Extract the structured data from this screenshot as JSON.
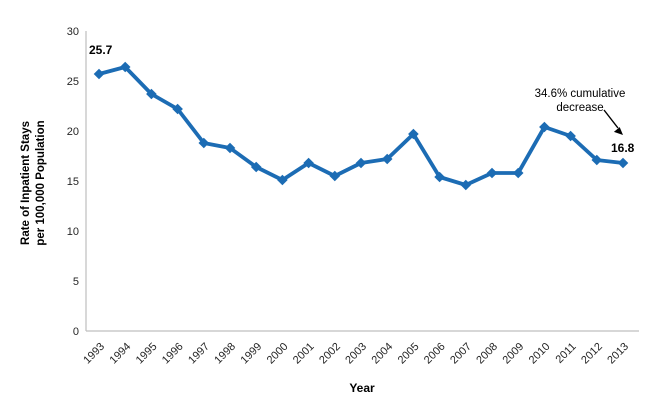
{
  "chart_data": {
    "type": "line",
    "title": "",
    "xlabel": "Year",
    "ylabel_line1": "Rate of Inpatient Stays",
    "ylabel_line2": "per 100,000 Population",
    "ylim": [
      0,
      30
    ],
    "ytick_step": 5,
    "grid": false,
    "legend": "none",
    "categories": [
      "1993",
      "1994",
      "1995",
      "1996",
      "1997",
      "1998",
      "1999",
      "2000",
      "2001",
      "2002",
      "2003",
      "2004",
      "2005",
      "2006",
      "2007",
      "2008",
      "2009",
      "2010",
      "2011",
      "2012",
      "2013"
    ],
    "series": [
      {
        "name": "Rate of inpatient stays per 100,000 population",
        "color": "#1C6CB4",
        "values": [
          25.7,
          26.4,
          23.7,
          22.2,
          18.8,
          18.3,
          16.4,
          15.1,
          16.8,
          15.5,
          16.8,
          17.2,
          19.7,
          15.4,
          14.6,
          15.8,
          15.8,
          20.4,
          19.5,
          17.1,
          16.8
        ]
      }
    ],
    "point_labels": {
      "first": "25.7",
      "last": "16.8"
    },
    "annotation": {
      "line1": "34.6% cumulative",
      "line2": "decrease"
    },
    "colors": {
      "series": "#1C6CB4",
      "axis_line": "#BFBFBF",
      "text": "#262626",
      "annotation_arrow": "#000000",
      "background": "#FFFFFF"
    }
  }
}
